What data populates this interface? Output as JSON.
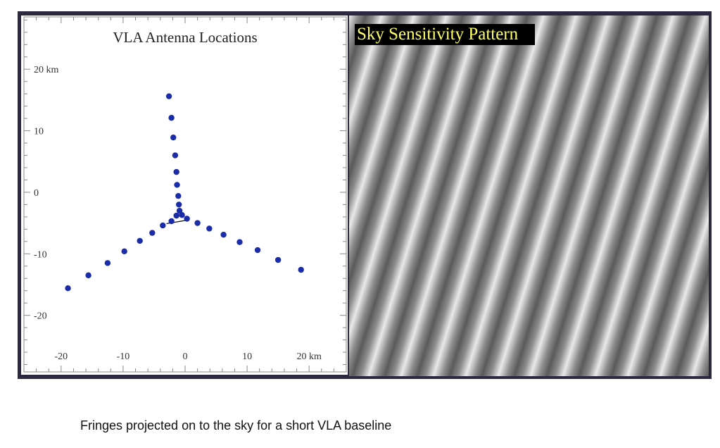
{
  "chart_data": {
    "type": "scatter",
    "title": "VLA Antenna Locations",
    "xlabel": "",
    "ylabel": "",
    "x_ticks": [
      {
        "value": -20,
        "label": "-20"
      },
      {
        "value": -10,
        "label": "-10"
      },
      {
        "value": 0,
        "label": "0"
      },
      {
        "value": 10,
        "label": "10"
      },
      {
        "value": 20,
        "label": "20 km"
      }
    ],
    "y_ticks": [
      {
        "value": 20,
        "label": "20 km"
      },
      {
        "value": 10,
        "label": "10"
      },
      {
        "value": 0,
        "label": "0"
      },
      {
        "value": -10,
        "label": "-10"
      },
      {
        "value": -20,
        "label": "-20"
      }
    ],
    "xlim": [
      -26,
      26
    ],
    "ylim": [
      -29.2,
      28.5
    ],
    "grid": false,
    "legend": "none",
    "point_color": "#1a2ca8",
    "points": [
      {
        "x": -2.6,
        "y": 15.6
      },
      {
        "x": -2.2,
        "y": 12.1
      },
      {
        "x": -1.9,
        "y": 8.9
      },
      {
        "x": -1.6,
        "y": 6.0
      },
      {
        "x": -1.4,
        "y": 3.3
      },
      {
        "x": -1.3,
        "y": 1.2
      },
      {
        "x": -1.1,
        "y": -0.6
      },
      {
        "x": -1.0,
        "y": -2.0
      },
      {
        "x": -0.9,
        "y": -3.0
      },
      {
        "x": -0.5,
        "y": -3.7
      },
      {
        "x": -1.4,
        "y": -3.8
      },
      {
        "x": 0.3,
        "y": -4.3
      },
      {
        "x": 2.0,
        "y": -5.0
      },
      {
        "x": 3.9,
        "y": -5.9
      },
      {
        "x": 6.2,
        "y": -6.9
      },
      {
        "x": 8.8,
        "y": -8.1
      },
      {
        "x": 11.7,
        "y": -9.4
      },
      {
        "x": 15.0,
        "y": -11.0
      },
      {
        "x": 18.7,
        "y": -12.6
      },
      {
        "x": -2.2,
        "y": -4.7
      },
      {
        "x": -3.6,
        "y": -5.4
      },
      {
        "x": -5.3,
        "y": -6.6
      },
      {
        "x": -7.3,
        "y": -7.9
      },
      {
        "x": -9.8,
        "y": -9.6
      },
      {
        "x": -12.5,
        "y": -11.5
      },
      {
        "x": -15.6,
        "y": -13.5
      },
      {
        "x": -18.9,
        "y": -15.6
      }
    ],
    "baseline": [
      {
        "x": -3.0,
        "y": -5.1
      },
      {
        "x": 0.5,
        "y": -4.5
      }
    ]
  },
  "sky_pattern": {
    "title": "Sky Sensitivity Pattern",
    "title_color": "#ffff66"
  },
  "caption": "Fringes projected on to the sky for a short VLA baseline"
}
